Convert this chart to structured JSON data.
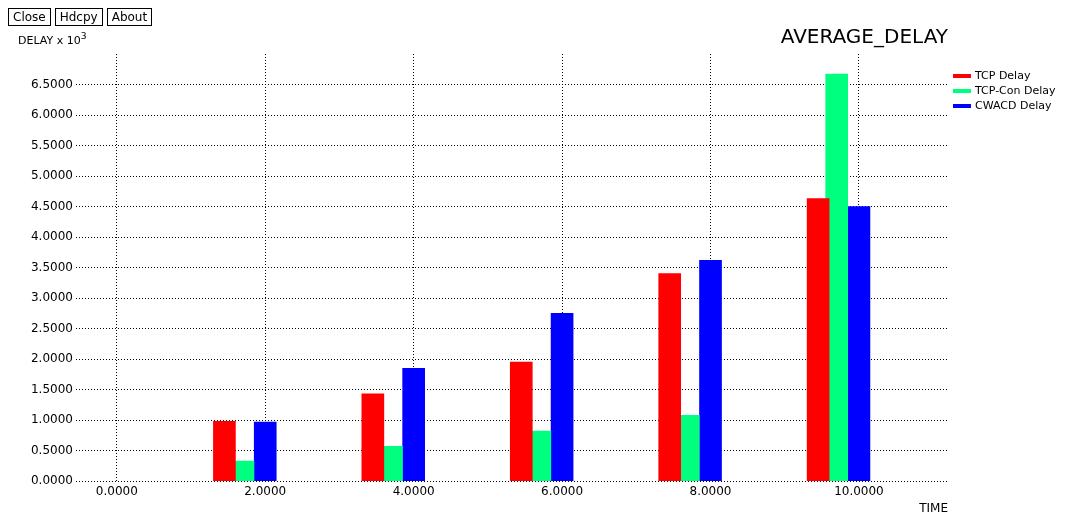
{
  "chart_data": {
    "type": "bar",
    "title": "AVERAGE_DELAY",
    "xlabel": "TIME",
    "ylabel": "DELAY x 10$^{3}$",
    "annotations": [
      "Close",
      "Hdcpy",
      "About"
    ],
    "xlim": [
      -0.55,
      11.2
    ],
    "ylim": [
      0,
      7
    ],
    "xticks": [
      {
        "value": 0,
        "label": "0.0000"
      },
      {
        "value": 2,
        "label": "2.0000"
      },
      {
        "value": 4,
        "label": "4.0000"
      },
      {
        "value": 6,
        "label": "6.0000"
      },
      {
        "value": 8,
        "label": "8.0000"
      },
      {
        "value": 10,
        "label": "10.0000"
      }
    ],
    "yticks": [
      {
        "value": 0,
        "label": "0.0000"
      },
      {
        "value": 0.5,
        "label": "0.5000"
      },
      {
        "value": 1,
        "label": "1.0000"
      },
      {
        "value": 1.5,
        "label": "1.5000"
      },
      {
        "value": 2,
        "label": "2.0000"
      },
      {
        "value": 2.5,
        "label": "2.5000"
      },
      {
        "value": 3,
        "label": "3.0000"
      },
      {
        "value": 3.5,
        "label": "3.5000"
      },
      {
        "value": 4,
        "label": "4.0000"
      },
      {
        "value": 4.5,
        "label": "4.5000"
      },
      {
        "value": 5,
        "label": "5.0000"
      },
      {
        "value": 5.5,
        "label": "5.5000"
      },
      {
        "value": 6,
        "label": "6.0000"
      },
      {
        "value": 6.5,
        "label": "6.5000"
      }
    ],
    "grid": true,
    "legend": "top right",
    "series": [
      {
        "name": "TCP Delay",
        "color": "#ff0000",
        "x": [
          1.45,
          3.45,
          5.45,
          7.45,
          9.45
        ],
        "values": [
          0.98,
          1.43,
          1.95,
          3.4,
          4.63
        ]
      },
      {
        "name": "TCP-Con Delay",
        "color": "#00ff7f",
        "x": [
          1.7,
          3.7,
          5.7,
          7.7,
          9.7
        ],
        "values": [
          0.33,
          0.57,
          0.82,
          1.08,
          6.67
        ]
      },
      {
        "name": "CWACD Delay",
        "color": "#0000ff",
        "x": [
          2,
          4,
          6,
          8,
          10
        ],
        "values": [
          0.97,
          1.85,
          2.75,
          3.62,
          4.5
        ]
      }
    ]
  }
}
